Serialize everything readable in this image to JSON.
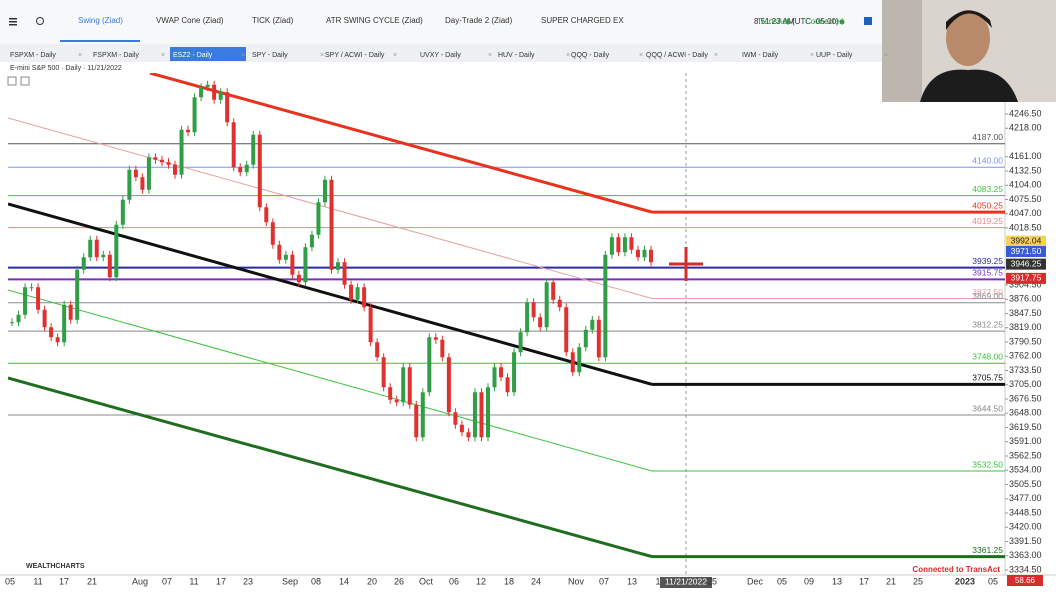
{
  "toolbar": {
    "tabs": [
      "Swing (Ziad)",
      "VWAP Cone (Ziad)",
      "TICK (Ziad)",
      "ATR SWING CYCLE (Ziad)",
      "Day-Trade 2 (Ziad)",
      "SUPER CHARGED EX"
    ],
    "time": "8:51:23 AM",
    "timezone": "(UTC -05:00)",
    "broker": "TransAct",
    "status": "Connected"
  },
  "chart_tabs": [
    "FSPXM - Daily",
    "FSPXM - Daily",
    "ESZ2 - Daily",
    "SPY - Daily",
    "SPY / ACWI - Daily",
    "UVXY - Daily",
    "HUV - Daily",
    "QQQ - Daily",
    "QQQ / ACWI - Daily",
    "IWM - Daily",
    "UUP - Daily"
  ],
  "chart": {
    "title": "E-mini S&P 500 · Daily · 11/21/2022",
    "ylim": [
      3324.5,
      4328.5
    ],
    "yticks": [
      {
        "value": 4246.5,
        "label": "4246.50"
      },
      {
        "value": 4218,
        "label": "4218.00"
      },
      {
        "value": 4161,
        "label": "4161.00"
      },
      {
        "value": 4132.5,
        "label": "4132.50"
      },
      {
        "value": 4104,
        "label": "4104.00"
      },
      {
        "value": 4075.5,
        "label": "4075.50"
      },
      {
        "value": 4047,
        "label": "4047.00"
      },
      {
        "value": 4018.5,
        "label": "4018.50"
      },
      {
        "value": 3904.5,
        "label": "3904.50"
      },
      {
        "value": 3876,
        "label": "3876.00"
      },
      {
        "value": 3847.5,
        "label": "3847.50"
      },
      {
        "value": 3819,
        "label": "3819.00"
      },
      {
        "value": 3790.5,
        "label": "3790.50"
      },
      {
        "value": 3762,
        "label": "3762.00"
      },
      {
        "value": 3733.5,
        "label": "3733.50"
      },
      {
        "value": 3705,
        "label": "3705.00"
      },
      {
        "value": 3676.5,
        "label": "3676.50"
      },
      {
        "value": 3648,
        "label": "3648.00"
      },
      {
        "value": 3619.5,
        "label": "3619.50"
      },
      {
        "value": 3591,
        "label": "3591.00"
      },
      {
        "value": 3562.5,
        "label": "3562.50"
      },
      {
        "value": 3534,
        "label": "3534.00"
      },
      {
        "value": 3505.5,
        "label": "3505.50"
      },
      {
        "value": 3477,
        "label": "3477.00"
      },
      {
        "value": 3448.5,
        "label": "3448.50"
      },
      {
        "value": 3420,
        "label": "3420.00"
      },
      {
        "value": 3391.5,
        "label": "3391.50"
      },
      {
        "value": 3363,
        "label": "3363.00"
      },
      {
        "value": 3334.5,
        "label": "3334.50"
      }
    ],
    "levels": [
      {
        "value": 4187,
        "label": "4187.00",
        "color": "#555555"
      },
      {
        "value": 4140,
        "label": "4140.00",
        "color": "#7b93f0"
      },
      {
        "value": 4083.25,
        "label": "4083.25",
        "color": "#3cc23c"
      },
      {
        "value": 4050.25,
        "label": "4050.25",
        "color": "#e8321e"
      },
      {
        "value": 4019.25,
        "label": "4019.25",
        "color": "#f08080"
      },
      {
        "value": 3939.25,
        "label": "3939.25",
        "color": "#2a2aa8"
      },
      {
        "value": 3915.75,
        "label": "3915.75",
        "color": "#7b2fbf"
      },
      {
        "value": 3877.5,
        "label": "3877.50",
        "color": "#e8a0a0"
      },
      {
        "value": 3869,
        "label": "3869.00",
        "color": "#8a8a9a"
      },
      {
        "value": 3812.25,
        "label": "3812.25",
        "color": "#888888"
      },
      {
        "value": 3748,
        "label": "3748.00",
        "color": "#3cc23c"
      },
      {
        "value": 3705.75,
        "label": "3705.75",
        "color": "#111111"
      },
      {
        "value": 3644.5,
        "label": "3644.50",
        "color": "#888888"
      },
      {
        "value": 3532.5,
        "label": "3532.50",
        "color": "#3cc23c"
      },
      {
        "value": 3361.25,
        "label": "3361.25",
        "color": "#1f6e1f"
      }
    ],
    "price_boxes": [
      {
        "value": 3992.04,
        "label": "3992.04",
        "color": "#f2d25a"
      },
      {
        "value": 3971.5,
        "label": "3971.50",
        "color": "#3a5bd9"
      },
      {
        "value": 3946.25,
        "label": "3946.25",
        "color": "#333333"
      },
      {
        "value": 3917.75,
        "label": "3917.75",
        "color": "#d92b2b"
      }
    ],
    "x_labels": [
      "05",
      "11",
      "17",
      "21",
      "Aug",
      "07",
      "11",
      "17",
      "23",
      "Sep",
      "08",
      "14",
      "20",
      "26",
      "Oct",
      "06",
      "12",
      "18",
      "24",
      "Nov",
      "07",
      "13",
      "1",
      "11/21/2022",
      "25",
      "Dec",
      "05",
      "09",
      "13",
      "17",
      "21",
      "25",
      "2023",
      "05"
    ],
    "candles": {
      "up_color": "#2f9e44",
      "down_color": "#e03131",
      "closes": [
        3830,
        3845,
        3900,
        3900,
        3855,
        3820,
        3800,
        3790,
        3865,
        3835,
        3935,
        3960,
        3995,
        3960,
        3965,
        3920,
        4025,
        4075,
        4135,
        4120,
        4095,
        4160,
        4155,
        4150,
        4145,
        4125,
        4215,
        4210,
        4280,
        4300,
        4305,
        4275,
        4290,
        4230,
        4140,
        4130,
        4145,
        4205,
        4060,
        4030,
        3985,
        3955,
        3965,
        3925,
        3910,
        3980,
        4005,
        4070,
        4115,
        3935,
        3950,
        3905,
        3875,
        3900,
        3860,
        3790,
        3760,
        3700,
        3675,
        3670,
        3740,
        3665,
        3600,
        3690,
        3800,
        3795,
        3760,
        3650,
        3625,
        3610,
        3600,
        3690,
        3600,
        3700,
        3740,
        3720,
        3690,
        3770,
        3810,
        3870,
        3840,
        3820,
        3910,
        3875,
        3860,
        3770,
        3730,
        3780,
        3815,
        3835,
        3760,
        3965,
        4000,
        3970,
        4000,
        3975,
        3960,
        3975,
        3950
      ]
    }
  },
  "footer": {
    "logo": "WEALTHCHARTS",
    "status": "Connected to TransAct",
    "value": "58.66"
  }
}
